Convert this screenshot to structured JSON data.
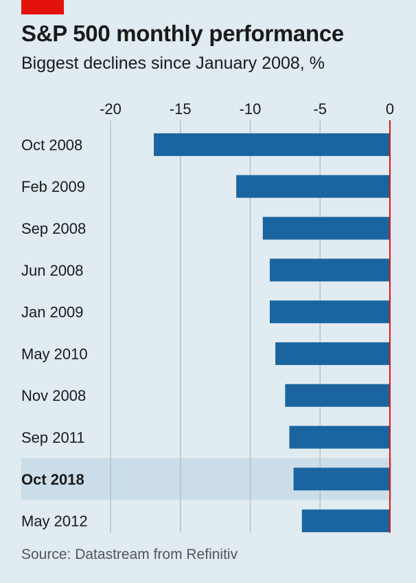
{
  "chart_data": {
    "type": "bar",
    "orientation": "horizontal",
    "title": "S&P 500 monthly performance",
    "subtitle": "Biggest declines since January 2008, %",
    "source": "Source: Datastream from Refinitiv",
    "categories": [
      "Oct 2008",
      "Feb 2009",
      "Sep 2008",
      "Jun 2008",
      "Jan 2009",
      "May 2010",
      "Nov 2008",
      "Sep 2011",
      "Oct 2018",
      "May 2012"
    ],
    "values": [
      -16.9,
      -11.0,
      -9.1,
      -8.6,
      -8.6,
      -8.2,
      -7.5,
      -7.2,
      -6.9,
      -6.3
    ],
    "highlighted": "Oct 2018",
    "xlim": [
      -20,
      0
    ],
    "xticks": [
      "-20",
      "-15",
      "-10",
      "-5",
      "0"
    ],
    "xtick_values": [
      -20,
      -15,
      -10,
      -5,
      0
    ],
    "axis_position": "top",
    "grid": true,
    "colors": {
      "bar": "#1a65a0",
      "background": "#e0ebf2",
      "highlight": "#cadde8",
      "zero_line": "#e3120b",
      "grid": "#b4bcc2",
      "brand": "#e3120b"
    }
  }
}
